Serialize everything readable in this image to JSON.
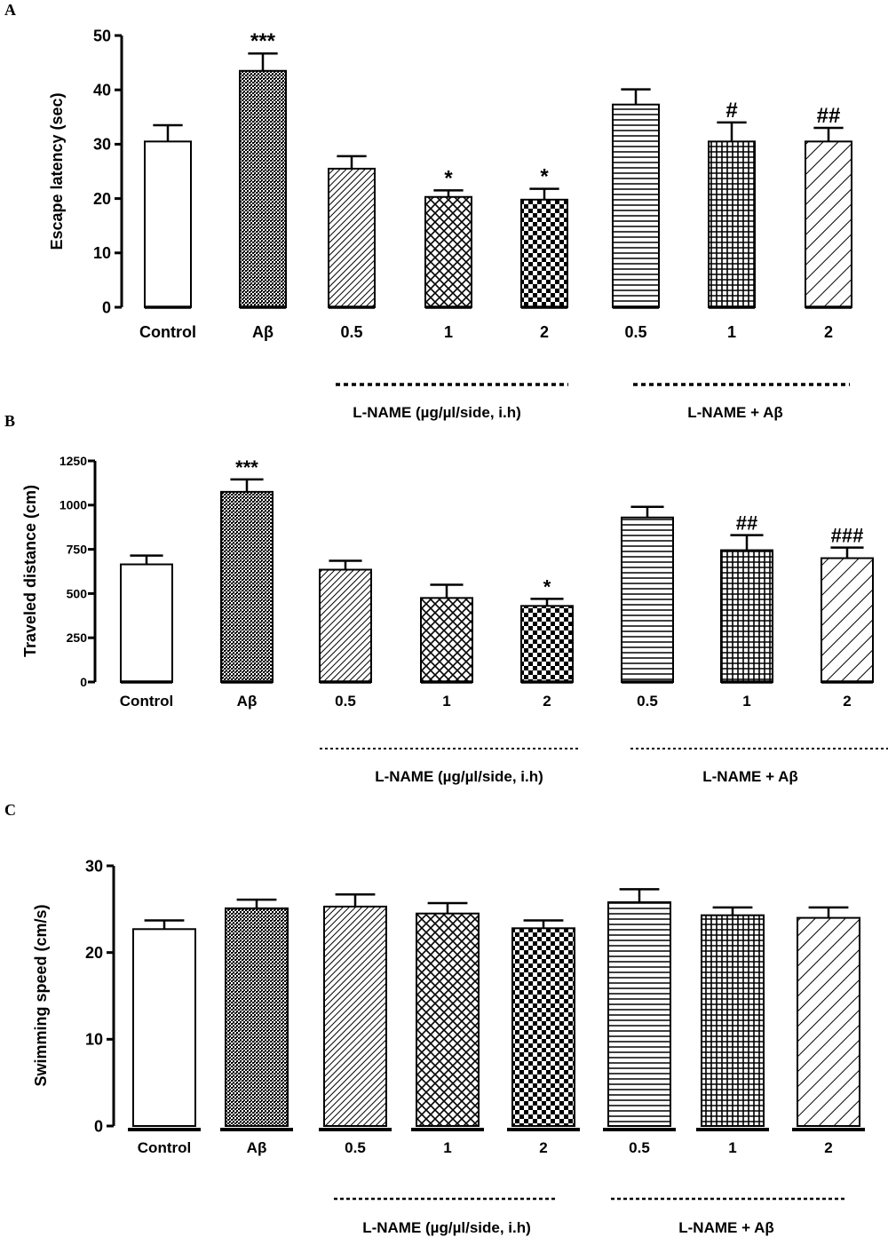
{
  "chart_data": [
    {
      "type": "bar",
      "panel": "A",
      "ylabel": "Escape latency (sec)",
      "ylim": [
        0,
        50
      ],
      "yticks": [
        0,
        10,
        20,
        30,
        40,
        50
      ],
      "categories": [
        "Control",
        "Aβ",
        "0.5",
        "1",
        "2",
        "0.5",
        "1",
        "2"
      ],
      "values": [
        30.5,
        43.5,
        25.5,
        20.3,
        19.8,
        37.3,
        30.5,
        30.5
      ],
      "errors": [
        3.0,
        3.2,
        2.3,
        1.2,
        2.0,
        2.8,
        3.5,
        2.5
      ],
      "annotations": [
        "",
        "***",
        "",
        "*",
        "*",
        "",
        "#",
        "##"
      ],
      "patterns": [
        "none",
        "dots",
        "diag-fine",
        "cross-diag",
        "checker",
        "horiz",
        "grid",
        "diag-wide"
      ],
      "groups": [
        "L-NAME (µg/µl/side, i.h)",
        "L-NAME + Aβ"
      ]
    },
    {
      "type": "bar",
      "panel": "B",
      "ylabel": "Traveled distance (cm)",
      "ylim": [
        0,
        1250
      ],
      "yticks": [
        0,
        250,
        500,
        750,
        1000,
        1250
      ],
      "categories": [
        "Control",
        "Aβ",
        "0.5",
        "1",
        "2",
        "0.5",
        "1",
        "2"
      ],
      "values": [
        665,
        1075,
        635,
        475,
        430,
        930,
        745,
        700
      ],
      "errors": [
        50,
        70,
        50,
        75,
        40,
        60,
        85,
        60
      ],
      "annotations": [
        "",
        "***",
        "",
        "",
        "*",
        "",
        "##",
        "###"
      ],
      "patterns": [
        "none",
        "dots",
        "diag-fine",
        "cross-diag",
        "checker",
        "horiz",
        "grid",
        "diag-wide"
      ],
      "groups": [
        "L-NAME (µg/µl/side, i.h)",
        "L-NAME + Aβ"
      ]
    },
    {
      "type": "bar",
      "panel": "C",
      "ylabel": "Swimming speed (cm/s)",
      "ylim": [
        0,
        30
      ],
      "yticks": [
        0,
        10,
        20,
        30
      ],
      "categories": [
        "Control",
        "Aβ",
        "0.5",
        "1",
        "2",
        "0.5",
        "1",
        "2"
      ],
      "values": [
        22.7,
        25.1,
        25.3,
        24.5,
        22.8,
        25.8,
        24.3,
        24.0
      ],
      "errors": [
        1.0,
        1.0,
        1.4,
        1.2,
        0.9,
        1.5,
        0.9,
        1.2
      ],
      "annotations": [
        "",
        "",
        "",
        "",
        "",
        "",
        "",
        ""
      ],
      "patterns": [
        "none",
        "dots",
        "diag-fine",
        "cross-diag",
        "checker",
        "horiz",
        "grid",
        "diag-wide"
      ],
      "groups": [
        "L-NAME (µg/µl/side, i.h)",
        "L-NAME + Aβ"
      ]
    }
  ]
}
